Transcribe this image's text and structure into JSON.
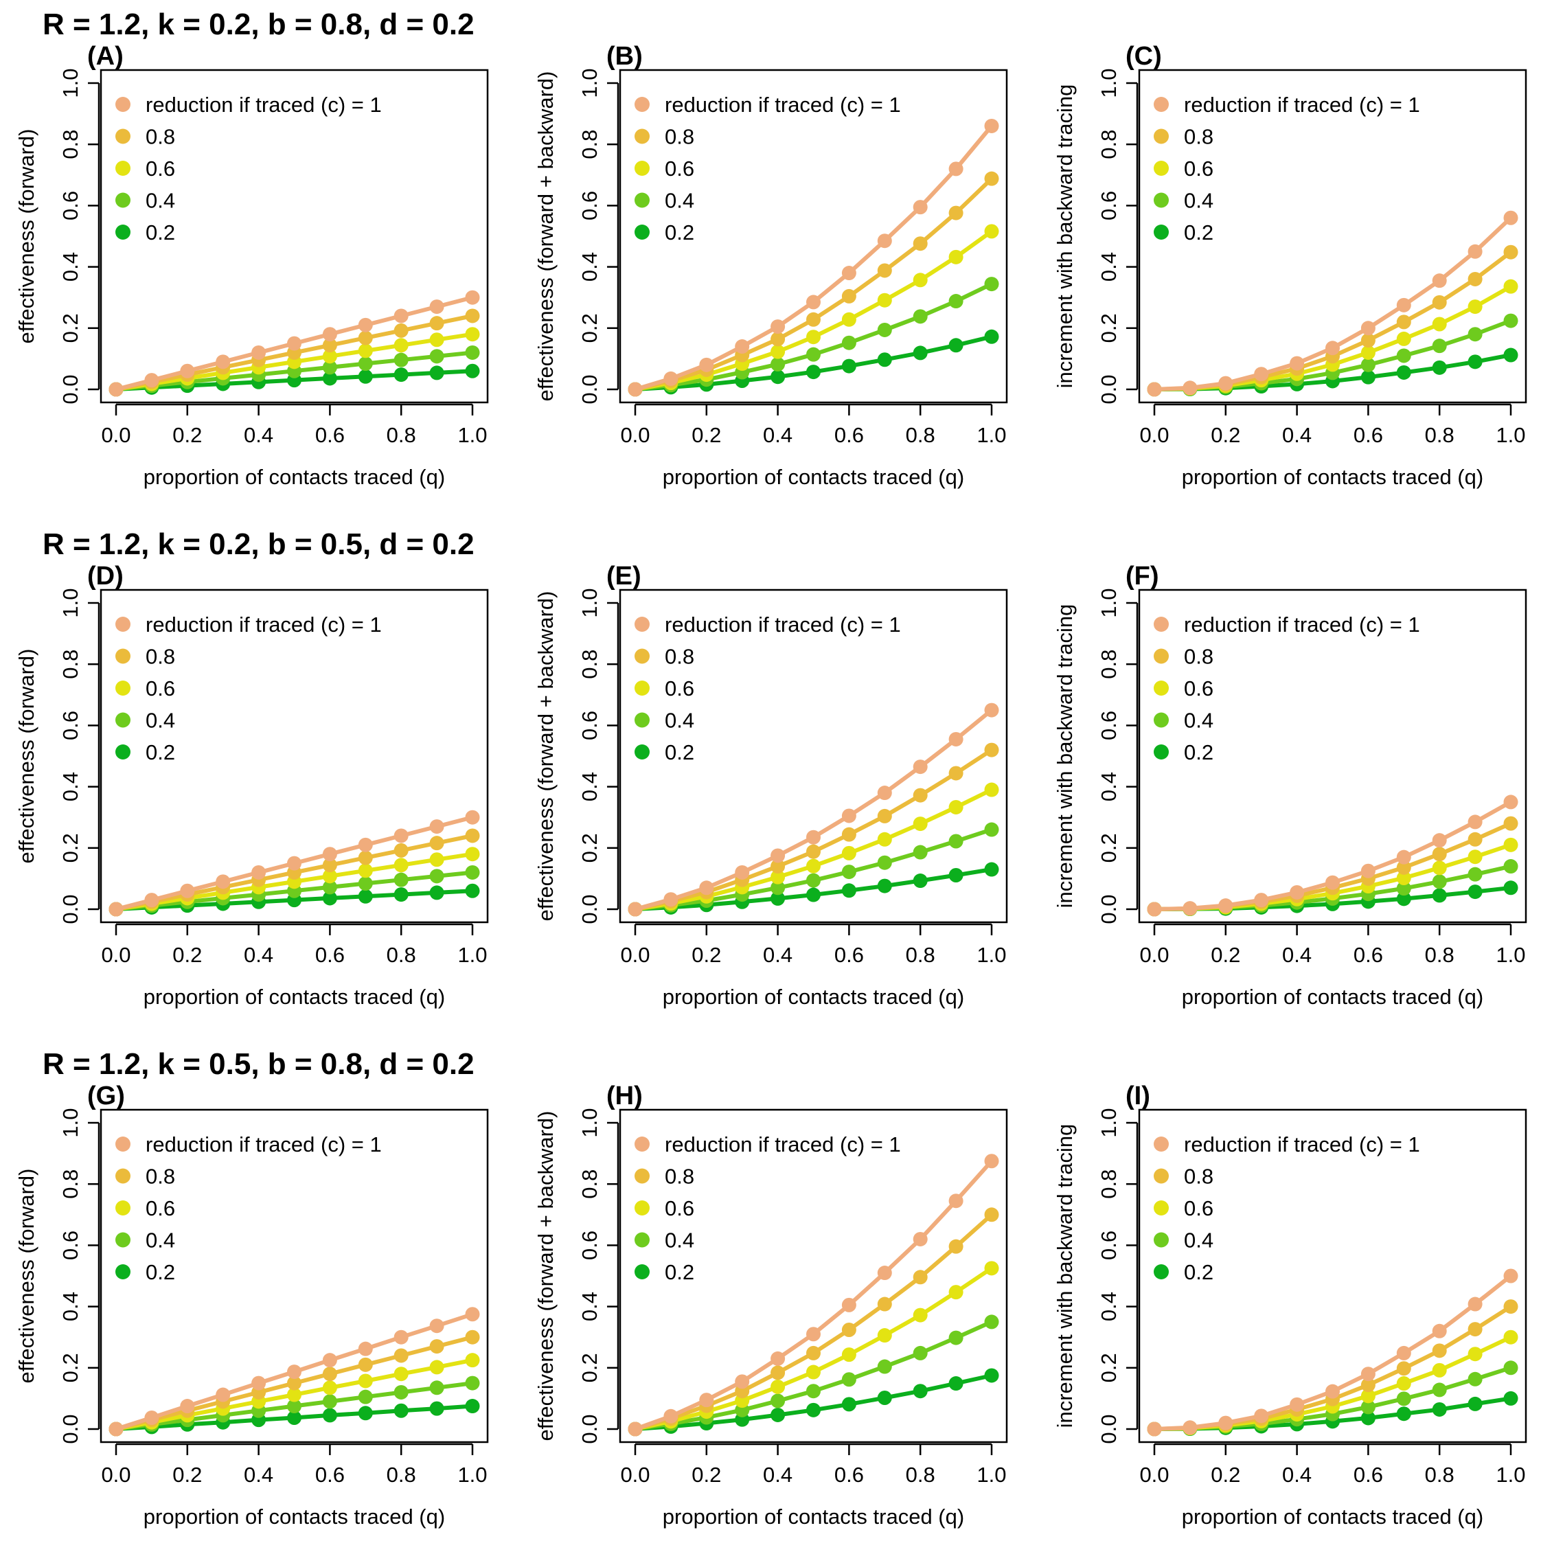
{
  "row_titles": [
    "R = 1.2, k = 0.2, b = 0.8, d = 0.2",
    "R = 1.2, k = 0.2, b = 0.5, d = 0.2",
    "R = 1.2, k = 0.5, b = 0.8, d = 0.2"
  ],
  "series_colors": [
    "#F0AC7C",
    "#EBBB3B",
    "#E3E312",
    "#6ECB1E",
    "#0BAF1D"
  ],
  "chart_data": [
    {
      "panel": "(A)",
      "type": "line",
      "xlabel": "proportion of contacts traced (q)",
      "ylabel": "effectiveness (forward)",
      "xlim": [
        0,
        1
      ],
      "ylim": [
        0,
        1
      ],
      "x_ticks": [
        "0.0",
        "0.2",
        "0.4",
        "0.6",
        "0.8",
        "1.0"
      ],
      "y_ticks": [
        "0.0",
        "0.2",
        "0.4",
        "0.6",
        "0.8",
        "1.0"
      ],
      "x": [
        0,
        0.1,
        0.2,
        0.3,
        0.4,
        0.5,
        0.6,
        0.7,
        0.8,
        0.9,
        1.0
      ],
      "legend_position": "top-left",
      "series": [
        {
          "name": "reduction if traced (c) = 1",
          "values": [
            0,
            0.03,
            0.06,
            0.09,
            0.12,
            0.15,
            0.18,
            0.21,
            0.24,
            0.27,
            0.3
          ]
        },
        {
          "name": "0.8",
          "values": [
            0,
            0.024,
            0.048,
            0.072,
            0.096,
            0.12,
            0.144,
            0.168,
            0.192,
            0.216,
            0.24
          ]
        },
        {
          "name": "0.6",
          "values": [
            0,
            0.018,
            0.036,
            0.054,
            0.072,
            0.09,
            0.108,
            0.126,
            0.144,
            0.162,
            0.18
          ]
        },
        {
          "name": "0.4",
          "values": [
            0,
            0.012,
            0.024,
            0.036,
            0.048,
            0.06,
            0.072,
            0.084,
            0.096,
            0.108,
            0.12
          ]
        },
        {
          "name": "0.2",
          "values": [
            0,
            0.006,
            0.012,
            0.018,
            0.024,
            0.03,
            0.036,
            0.042,
            0.048,
            0.054,
            0.06
          ]
        }
      ]
    },
    {
      "panel": "(B)",
      "type": "line",
      "xlabel": "proportion of contacts traced (q)",
      "ylabel": "effectiveness (forward + backward)",
      "xlim": [
        0,
        1
      ],
      "ylim": [
        0,
        1
      ],
      "x_ticks": [
        "0.0",
        "0.2",
        "0.4",
        "0.6",
        "0.8",
        "1.0"
      ],
      "y_ticks": [
        "0.0",
        "0.2",
        "0.4",
        "0.6",
        "0.8",
        "1.0"
      ],
      "x": [
        0,
        0.1,
        0.2,
        0.3,
        0.4,
        0.5,
        0.6,
        0.7,
        0.8,
        0.9,
        1.0
      ],
      "legend_position": "top-left",
      "series": [
        {
          "name": "reduction if traced (c) = 1",
          "values": [
            0,
            0.035,
            0.08,
            0.14,
            0.205,
            0.285,
            0.38,
            0.485,
            0.595,
            0.72,
            0.86
          ]
        },
        {
          "name": "0.8",
          "values": [
            0,
            0.028,
            0.064,
            0.112,
            0.164,
            0.228,
            0.304,
            0.388,
            0.476,
            0.576,
            0.688
          ]
        },
        {
          "name": "0.6",
          "values": [
            0,
            0.021,
            0.048,
            0.084,
            0.123,
            0.171,
            0.228,
            0.291,
            0.357,
            0.432,
            0.516
          ]
        },
        {
          "name": "0.4",
          "values": [
            0,
            0.014,
            0.032,
            0.056,
            0.082,
            0.114,
            0.152,
            0.194,
            0.238,
            0.288,
            0.344
          ]
        },
        {
          "name": "0.2",
          "values": [
            0,
            0.007,
            0.016,
            0.028,
            0.041,
            0.057,
            0.076,
            0.097,
            0.119,
            0.144,
            0.172
          ]
        }
      ]
    },
    {
      "panel": "(C)",
      "type": "line",
      "xlabel": "proportion of contacts traced (q)",
      "ylabel": "increment with backward tracing",
      "xlim": [
        0,
        1
      ],
      "ylim": [
        0,
        1
      ],
      "x_ticks": [
        "0.0",
        "0.2",
        "0.4",
        "0.6",
        "0.8",
        "1.0"
      ],
      "y_ticks": [
        "0.0",
        "0.2",
        "0.4",
        "0.6",
        "0.8",
        "1.0"
      ],
      "x": [
        0,
        0.1,
        0.2,
        0.3,
        0.4,
        0.5,
        0.6,
        0.7,
        0.8,
        0.9,
        1.0
      ],
      "legend_position": "top-left",
      "series": [
        {
          "name": "reduction if traced (c) = 1",
          "values": [
            0,
            0.005,
            0.02,
            0.05,
            0.085,
            0.135,
            0.2,
            0.275,
            0.355,
            0.45,
            0.56
          ]
        },
        {
          "name": "0.8",
          "values": [
            0,
            0.004,
            0.016,
            0.04,
            0.068,
            0.108,
            0.16,
            0.22,
            0.284,
            0.36,
            0.448
          ]
        },
        {
          "name": "0.6",
          "values": [
            0,
            0.003,
            0.012,
            0.03,
            0.051,
            0.081,
            0.12,
            0.165,
            0.213,
            0.27,
            0.336
          ]
        },
        {
          "name": "0.4",
          "values": [
            0,
            0.002,
            0.008,
            0.02,
            0.034,
            0.054,
            0.08,
            0.11,
            0.142,
            0.18,
            0.224
          ]
        },
        {
          "name": "0.2",
          "values": [
            0,
            0.001,
            0.004,
            0.01,
            0.017,
            0.027,
            0.04,
            0.055,
            0.071,
            0.09,
            0.112
          ]
        }
      ]
    },
    {
      "panel": "(D)",
      "type": "line",
      "xlabel": "proportion of contacts traced (q)",
      "ylabel": "effectiveness (forward)",
      "xlim": [
        0,
        1
      ],
      "ylim": [
        0,
        1
      ],
      "x_ticks": [
        "0.0",
        "0.2",
        "0.4",
        "0.6",
        "0.8",
        "1.0"
      ],
      "y_ticks": [
        "0.0",
        "0.2",
        "0.4",
        "0.6",
        "0.8",
        "1.0"
      ],
      "x": [
        0,
        0.1,
        0.2,
        0.3,
        0.4,
        0.5,
        0.6,
        0.7,
        0.8,
        0.9,
        1.0
      ],
      "legend_position": "top-left",
      "series": [
        {
          "name": "reduction if traced (c) = 1",
          "values": [
            0,
            0.03,
            0.06,
            0.09,
            0.12,
            0.15,
            0.18,
            0.21,
            0.24,
            0.27,
            0.3
          ]
        },
        {
          "name": "0.8",
          "values": [
            0,
            0.024,
            0.048,
            0.072,
            0.096,
            0.12,
            0.144,
            0.168,
            0.192,
            0.216,
            0.24
          ]
        },
        {
          "name": "0.6",
          "values": [
            0,
            0.018,
            0.036,
            0.054,
            0.072,
            0.09,
            0.108,
            0.126,
            0.144,
            0.162,
            0.18
          ]
        },
        {
          "name": "0.4",
          "values": [
            0,
            0.012,
            0.024,
            0.036,
            0.048,
            0.06,
            0.072,
            0.084,
            0.096,
            0.108,
            0.12
          ]
        },
        {
          "name": "0.2",
          "values": [
            0,
            0.006,
            0.012,
            0.018,
            0.024,
            0.03,
            0.036,
            0.042,
            0.048,
            0.054,
            0.06
          ]
        }
      ]
    },
    {
      "panel": "(E)",
      "type": "line",
      "xlabel": "proportion of contacts traced (q)",
      "ylabel": "effectiveness (forward + backward)",
      "xlim": [
        0,
        1
      ],
      "ylim": [
        0,
        1
      ],
      "x_ticks": [
        "0.0",
        "0.2",
        "0.4",
        "0.6",
        "0.8",
        "1.0"
      ],
      "y_ticks": [
        "0.0",
        "0.2",
        "0.4",
        "0.6",
        "0.8",
        "1.0"
      ],
      "x": [
        0,
        0.1,
        0.2,
        0.3,
        0.4,
        0.5,
        0.6,
        0.7,
        0.8,
        0.9,
        1.0
      ],
      "legend_position": "top-left",
      "series": [
        {
          "name": "reduction if traced (c) = 1",
          "values": [
            0,
            0.032,
            0.07,
            0.12,
            0.175,
            0.235,
            0.305,
            0.38,
            0.465,
            0.555,
            0.65
          ]
        },
        {
          "name": "0.8",
          "values": [
            0,
            0.026,
            0.056,
            0.096,
            0.14,
            0.188,
            0.244,
            0.304,
            0.372,
            0.444,
            0.52
          ]
        },
        {
          "name": "0.6",
          "values": [
            0,
            0.019,
            0.042,
            0.072,
            0.105,
            0.141,
            0.183,
            0.228,
            0.279,
            0.333,
            0.39
          ]
        },
        {
          "name": "0.4",
          "values": [
            0,
            0.013,
            0.028,
            0.048,
            0.07,
            0.094,
            0.122,
            0.152,
            0.186,
            0.222,
            0.26
          ]
        },
        {
          "name": "0.2",
          "values": [
            0,
            0.006,
            0.014,
            0.024,
            0.035,
            0.047,
            0.061,
            0.076,
            0.093,
            0.111,
            0.13
          ]
        }
      ]
    },
    {
      "panel": "(F)",
      "type": "line",
      "xlabel": "proportion of contacts traced (q)",
      "ylabel": "increment with backward tracing",
      "xlim": [
        0,
        1
      ],
      "ylim": [
        0,
        1
      ],
      "x_ticks": [
        "0.0",
        "0.2",
        "0.4",
        "0.6",
        "0.8",
        "1.0"
      ],
      "y_ticks": [
        "0.0",
        "0.2",
        "0.4",
        "0.6",
        "0.8",
        "1.0"
      ],
      "x": [
        0,
        0.1,
        0.2,
        0.3,
        0.4,
        0.5,
        0.6,
        0.7,
        0.8,
        0.9,
        1.0
      ],
      "legend_position": "top-left",
      "series": [
        {
          "name": "reduction if traced (c) = 1",
          "values": [
            0,
            0.003,
            0.012,
            0.03,
            0.055,
            0.087,
            0.125,
            0.17,
            0.225,
            0.285,
            0.35
          ]
        },
        {
          "name": "0.8",
          "values": [
            0,
            0.002,
            0.01,
            0.024,
            0.044,
            0.07,
            0.1,
            0.136,
            0.18,
            0.228,
            0.28
          ]
        },
        {
          "name": "0.6",
          "values": [
            0,
            0.002,
            0.007,
            0.018,
            0.033,
            0.052,
            0.075,
            0.102,
            0.135,
            0.171,
            0.21
          ]
        },
        {
          "name": "0.4",
          "values": [
            0,
            0.001,
            0.005,
            0.012,
            0.022,
            0.035,
            0.05,
            0.068,
            0.09,
            0.114,
            0.14
          ]
        },
        {
          "name": "0.2",
          "values": [
            0,
            0.001,
            0.002,
            0.006,
            0.011,
            0.017,
            0.025,
            0.034,
            0.045,
            0.057,
            0.07
          ]
        }
      ]
    },
    {
      "panel": "(G)",
      "type": "line",
      "xlabel": "proportion of contacts traced (q)",
      "ylabel": "effectiveness (forward)",
      "xlim": [
        0,
        1
      ],
      "ylim": [
        0,
        1
      ],
      "x_ticks": [
        "0.0",
        "0.2",
        "0.4",
        "0.6",
        "0.8",
        "1.0"
      ],
      "y_ticks": [
        "0.0",
        "0.2",
        "0.4",
        "0.6",
        "0.8",
        "1.0"
      ],
      "x": [
        0,
        0.1,
        0.2,
        0.3,
        0.4,
        0.5,
        0.6,
        0.7,
        0.8,
        0.9,
        1.0
      ],
      "legend_position": "top-left",
      "series": [
        {
          "name": "reduction if traced (c) = 1",
          "values": [
            0,
            0.037,
            0.075,
            0.112,
            0.15,
            0.187,
            0.225,
            0.262,
            0.3,
            0.337,
            0.375
          ]
        },
        {
          "name": "0.8",
          "values": [
            0,
            0.03,
            0.06,
            0.09,
            0.12,
            0.15,
            0.18,
            0.21,
            0.24,
            0.27,
            0.3
          ]
        },
        {
          "name": "0.6",
          "values": [
            0,
            0.022,
            0.045,
            0.067,
            0.09,
            0.112,
            0.135,
            0.157,
            0.18,
            0.202,
            0.225
          ]
        },
        {
          "name": "0.4",
          "values": [
            0,
            0.015,
            0.03,
            0.045,
            0.06,
            0.075,
            0.09,
            0.105,
            0.12,
            0.135,
            0.15
          ]
        },
        {
          "name": "0.2",
          "values": [
            0,
            0.007,
            0.015,
            0.022,
            0.03,
            0.037,
            0.045,
            0.052,
            0.06,
            0.067,
            0.075
          ]
        }
      ]
    },
    {
      "panel": "(H)",
      "type": "line",
      "xlabel": "proportion of contacts traced (q)",
      "ylabel": "effectiveness (forward + backward)",
      "xlim": [
        0,
        1
      ],
      "ylim": [
        0,
        1
      ],
      "x_ticks": [
        "0.0",
        "0.2",
        "0.4",
        "0.6",
        "0.8",
        "1.0"
      ],
      "y_ticks": [
        "0.0",
        "0.2",
        "0.4",
        "0.6",
        "0.8",
        "1.0"
      ],
      "x": [
        0,
        0.1,
        0.2,
        0.3,
        0.4,
        0.5,
        0.6,
        0.7,
        0.8,
        0.9,
        1.0
      ],
      "legend_position": "top-left",
      "series": [
        {
          "name": "reduction if traced (c) = 1",
          "values": [
            0,
            0.042,
            0.095,
            0.155,
            0.23,
            0.31,
            0.405,
            0.51,
            0.62,
            0.745,
            0.875
          ]
        },
        {
          "name": "0.8",
          "values": [
            0,
            0.034,
            0.076,
            0.124,
            0.184,
            0.248,
            0.324,
            0.408,
            0.496,
            0.596,
            0.7
          ]
        },
        {
          "name": "0.6",
          "values": [
            0,
            0.025,
            0.057,
            0.093,
            0.138,
            0.186,
            0.243,
            0.306,
            0.372,
            0.447,
            0.525
          ]
        },
        {
          "name": "0.4",
          "values": [
            0,
            0.017,
            0.038,
            0.062,
            0.092,
            0.124,
            0.162,
            0.204,
            0.248,
            0.298,
            0.35
          ]
        },
        {
          "name": "0.2",
          "values": [
            0,
            0.008,
            0.019,
            0.031,
            0.046,
            0.062,
            0.081,
            0.102,
            0.124,
            0.149,
            0.175
          ]
        }
      ]
    },
    {
      "panel": "(I)",
      "type": "line",
      "xlabel": "proportion of contacts traced (q)",
      "ylabel": "increment with backward tracing",
      "xlim": [
        0,
        1
      ],
      "ylim": [
        0,
        1
      ],
      "x_ticks": [
        "0.0",
        "0.2",
        "0.4",
        "0.6",
        "0.8",
        "1.0"
      ],
      "y_ticks": [
        "0.0",
        "0.2",
        "0.4",
        "0.6",
        "0.8",
        "1.0"
      ],
      "x": [
        0,
        0.1,
        0.2,
        0.3,
        0.4,
        0.5,
        0.6,
        0.7,
        0.8,
        0.9,
        1.0
      ],
      "legend_position": "top-left",
      "series": [
        {
          "name": "reduction if traced (c) = 1",
          "values": [
            0,
            0.005,
            0.02,
            0.043,
            0.08,
            0.123,
            0.18,
            0.248,
            0.32,
            0.408,
            0.5
          ]
        },
        {
          "name": "0.8",
          "values": [
            0,
            0.004,
            0.016,
            0.034,
            0.064,
            0.098,
            0.144,
            0.198,
            0.256,
            0.326,
            0.4
          ]
        },
        {
          "name": "0.6",
          "values": [
            0,
            0.003,
            0.012,
            0.026,
            0.048,
            0.074,
            0.108,
            0.149,
            0.192,
            0.245,
            0.3
          ]
        },
        {
          "name": "0.4",
          "values": [
            0,
            0.002,
            0.008,
            0.017,
            0.032,
            0.049,
            0.072,
            0.099,
            0.128,
            0.163,
            0.2
          ]
        },
        {
          "name": "0.2",
          "values": [
            0,
            0.001,
            0.004,
            0.009,
            0.016,
            0.025,
            0.036,
            0.05,
            0.064,
            0.082,
            0.1
          ]
        }
      ]
    }
  ]
}
